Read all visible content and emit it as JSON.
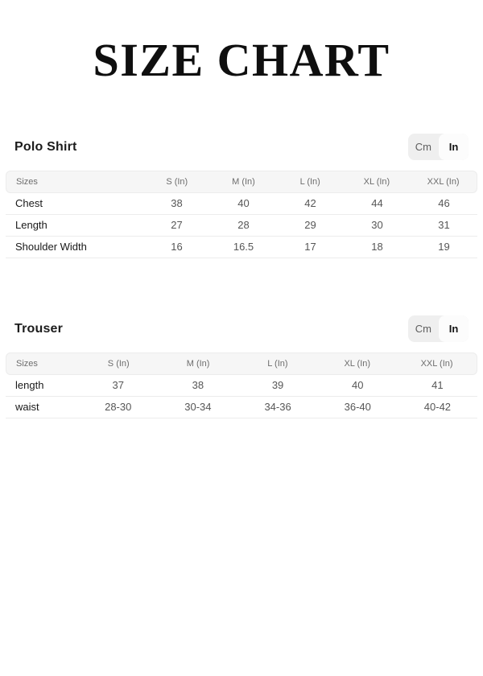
{
  "page": {
    "title": "SIZE CHART"
  },
  "unit_toggle": {
    "cm_label": "Cm",
    "in_label": "In",
    "active": "In"
  },
  "sections": [
    {
      "heading": "Polo Shirt",
      "columns": [
        "Sizes",
        "S (In)",
        "M (In)",
        "L (In)",
        "XL (In)",
        "XXL (In)"
      ],
      "rows": [
        {
          "label": "Chest",
          "values": [
            "38",
            "40",
            "42",
            "44",
            "46"
          ]
        },
        {
          "label": "Length",
          "values": [
            "27",
            "28",
            "29",
            "30",
            "31"
          ]
        },
        {
          "label": "Shoulder Width",
          "values": [
            "16",
            "16.5",
            "17",
            "18",
            "19"
          ]
        }
      ]
    },
    {
      "heading": "Trouser",
      "columns": [
        "Sizes",
        "S (In)",
        "M (In)",
        "L (In)",
        "XL (In)",
        "XXL (In)"
      ],
      "rows": [
        {
          "label": "length",
          "values": [
            "37",
            "38",
            "39",
            "40",
            "41"
          ]
        },
        {
          "label": "waist",
          "values": [
            "28-30",
            "30-34",
            "34-36",
            "36-40",
            "40-42"
          ]
        }
      ]
    }
  ],
  "colors": {
    "page_background": "#ffffff",
    "title_text": "#0f0f0f",
    "table_header_bg": "#f6f6f6",
    "table_border": "#ececec",
    "toggle_bg": "#efefef",
    "toggle_active_bg": "#fcfcfc",
    "label_text": "#191919",
    "value_text": "#565656"
  }
}
